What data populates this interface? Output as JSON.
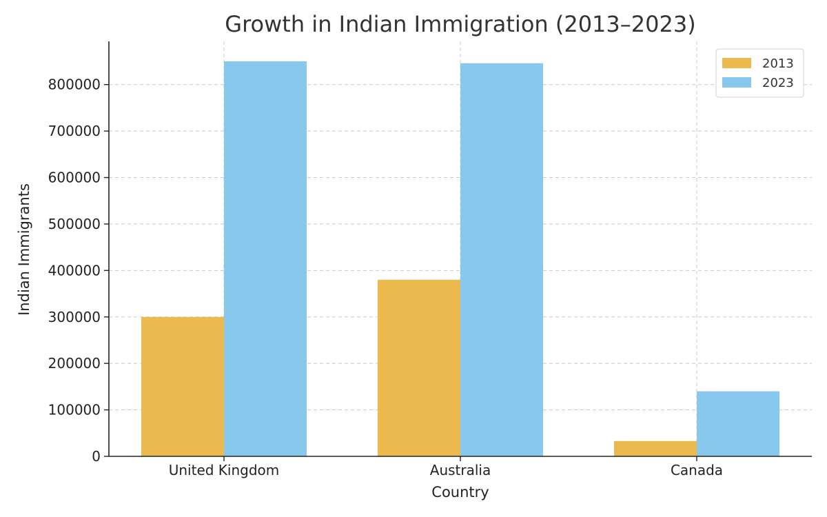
{
  "chart_data": {
    "type": "bar",
    "title": "Growth in Indian Immigration (2013–2023)",
    "xlabel": "Country",
    "ylabel": "Indian Immigrants",
    "categories": [
      "United Kingdom",
      "Australia",
      "Canada"
    ],
    "series": [
      {
        "name": "2013",
        "color": "#ebb94d",
        "values": [
          300000,
          380000,
          33000
        ]
      },
      {
        "name": "2023",
        "color": "#89c8ed",
        "values": [
          850000,
          846000,
          140000
        ]
      }
    ],
    "ylim": [
      0,
      893000
    ],
    "yticks": [
      0,
      100000,
      200000,
      300000,
      400000,
      500000,
      600000,
      700000,
      800000
    ],
    "grid": true,
    "legend_position": "top-right"
  }
}
